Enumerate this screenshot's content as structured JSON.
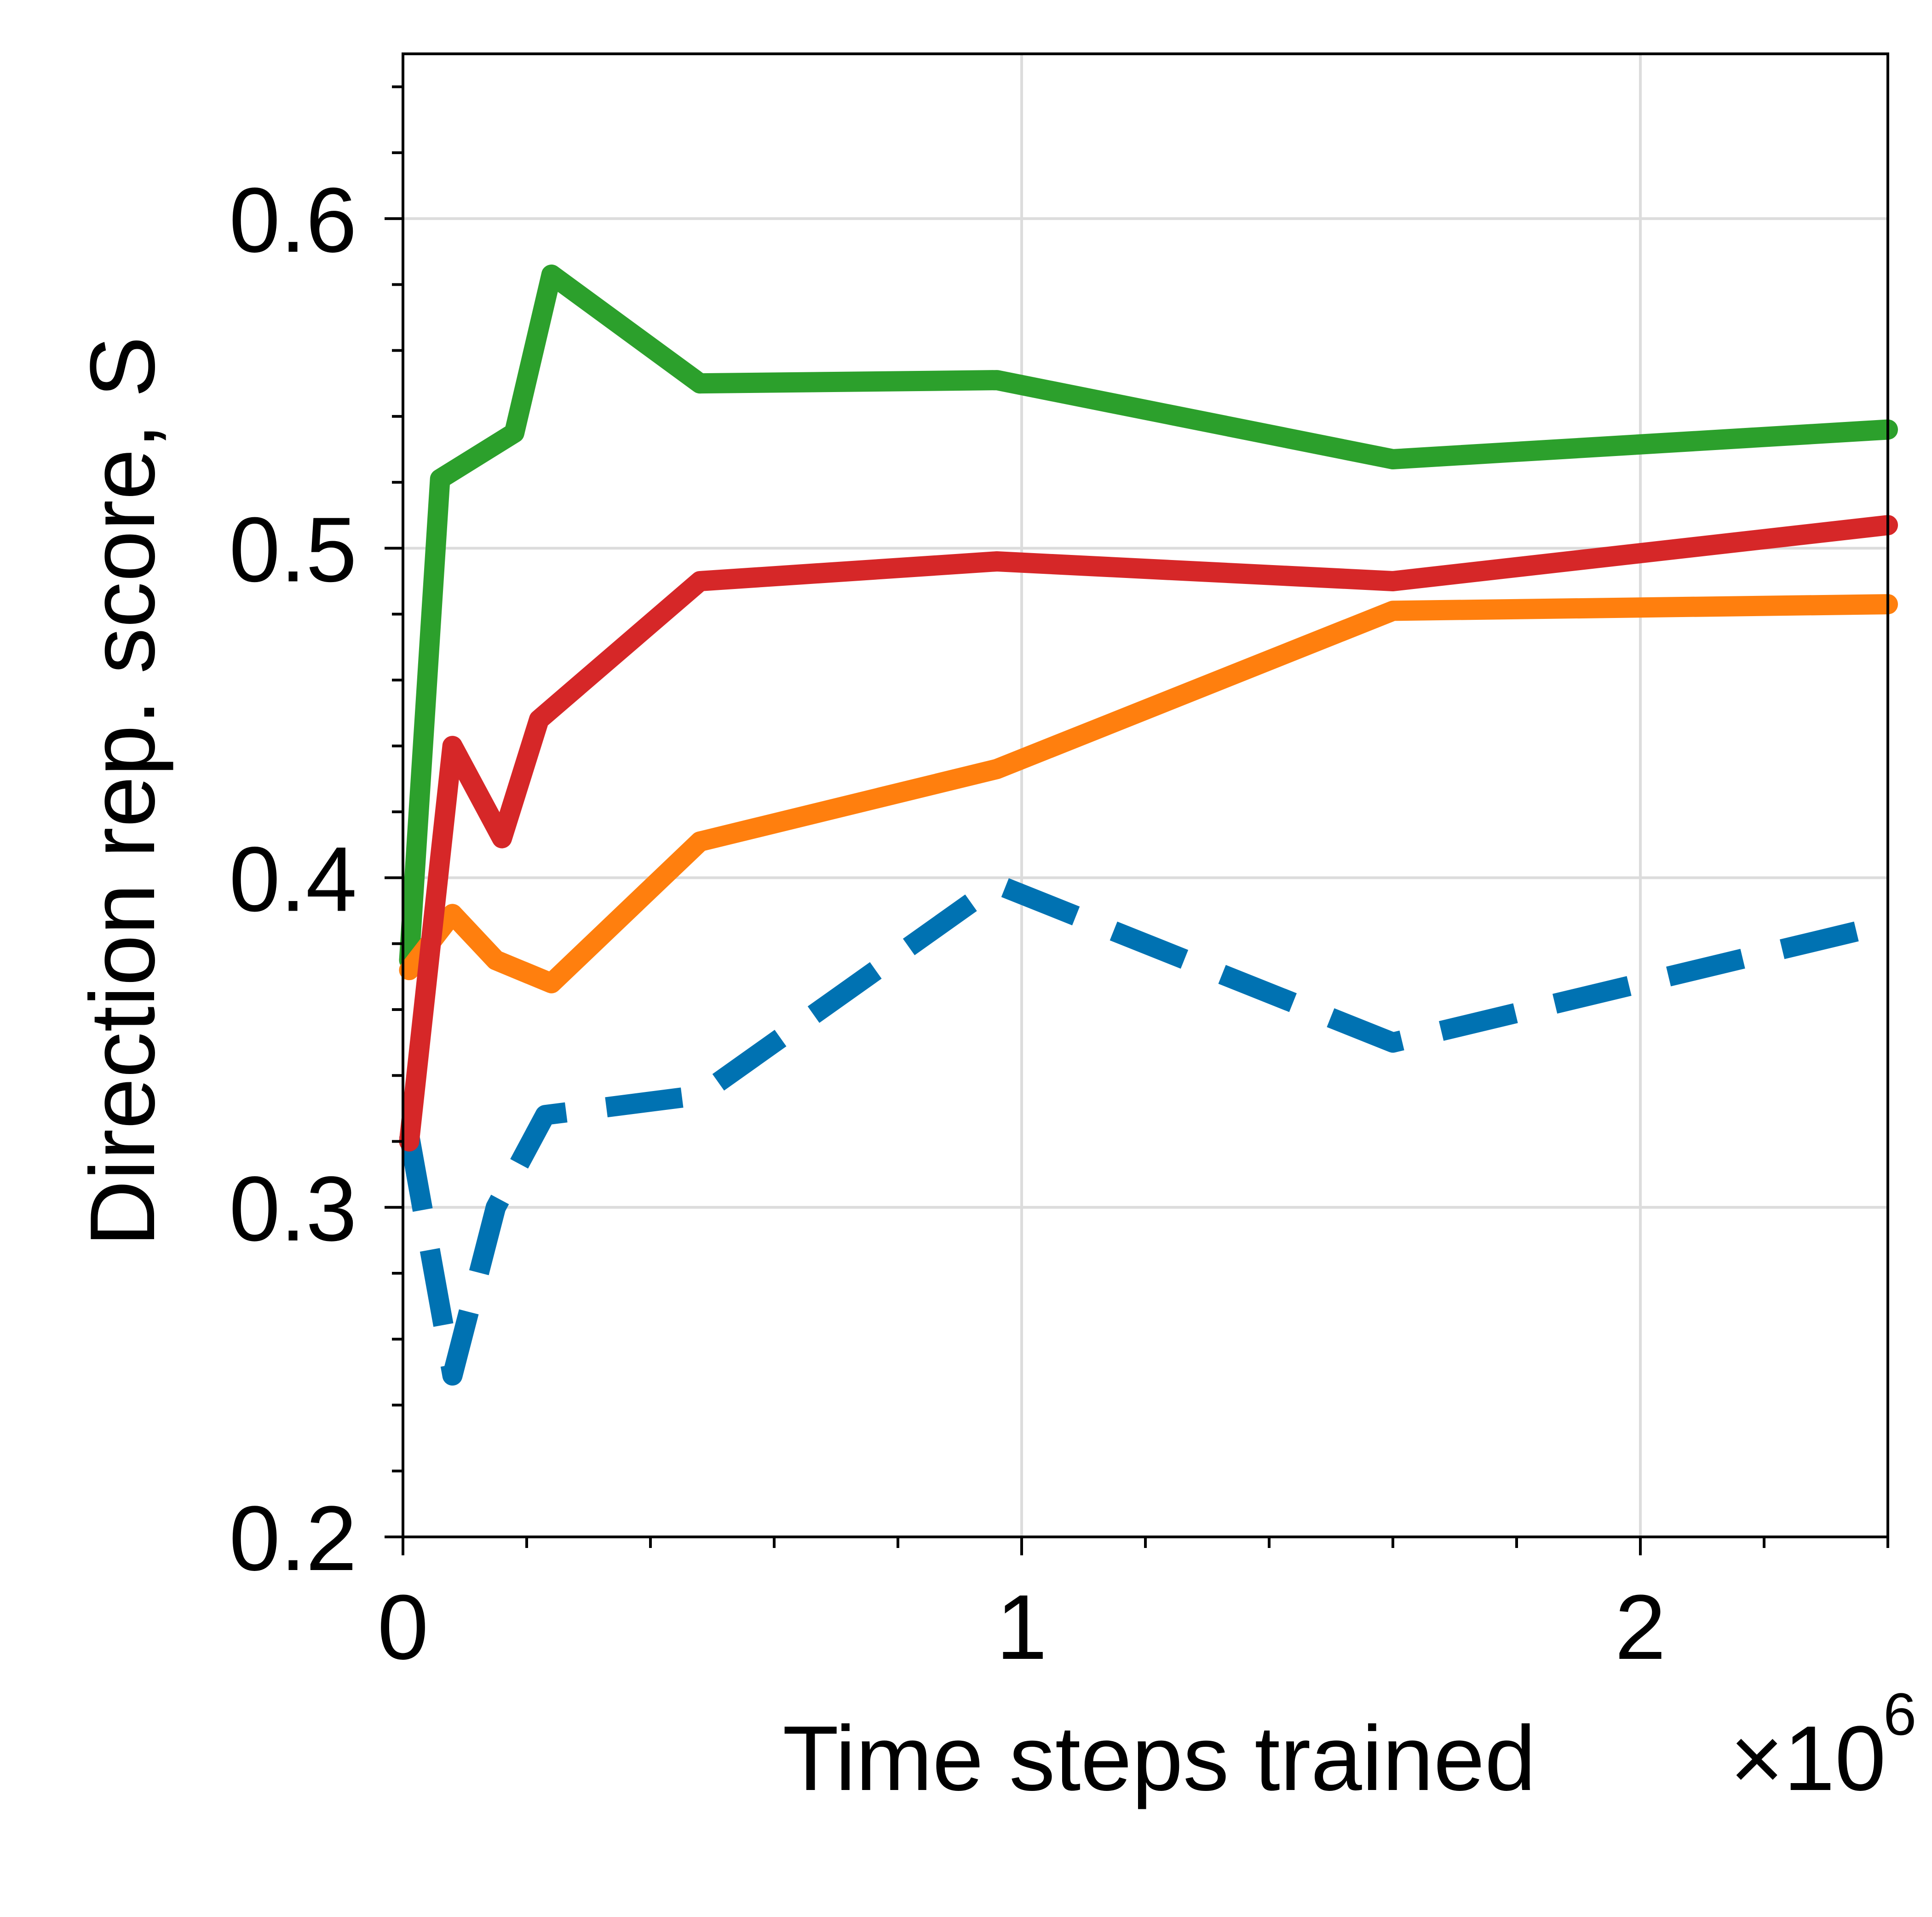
{
  "chart_data": {
    "type": "line",
    "title": "",
    "xlabel": "Time steps trained",
    "x_multiplier_label": "×10",
    "x_multiplier_exponent": "6",
    "ylabel": "Direction rep. score, S",
    "xlim": [
      0,
      2.4
    ],
    "ylim": [
      0.2,
      0.65
    ],
    "x_ticks": [
      0,
      1,
      2
    ],
    "x_tick_labels": [
      "0",
      "1",
      "2"
    ],
    "y_ticks": [
      0.2,
      0.3,
      0.4,
      0.5,
      0.6
    ],
    "y_tick_labels": [
      "0.2",
      "0.3",
      "0.4",
      "0.5",
      "0.6"
    ],
    "x_minor_step": 0.2,
    "y_minor_step": 0.02,
    "grid": true,
    "series": [
      {
        "color": "#0072b2",
        "style": "dashed",
        "x": [
          0.01,
          0.08,
          0.15,
          0.23,
          0.48,
          0.96,
          1.6,
          2.4
        ],
        "y": [
          0.322,
          0.249,
          0.3,
          0.328,
          0.334,
          0.398,
          0.35,
          0.386
        ]
      },
      {
        "color": "#2ca02c",
        "style": "solid",
        "x": [
          0.01,
          0.06,
          0.18,
          0.24,
          0.48,
          0.96,
          1.6,
          2.4
        ],
        "y": [
          0.375,
          0.521,
          0.535,
          0.583,
          0.55,
          0.551,
          0.527,
          0.536
        ]
      },
      {
        "color": "#ff7f0e",
        "style": "solid",
        "x": [
          0.01,
          0.08,
          0.15,
          0.24,
          0.48,
          0.96,
          1.6,
          2.4
        ],
        "y": [
          0.372,
          0.389,
          0.375,
          0.368,
          0.411,
          0.433,
          0.481,
          0.483
        ]
      },
      {
        "color": "#d62728",
        "style": "solid",
        "x": [
          0.01,
          0.08,
          0.16,
          0.22,
          0.48,
          0.96,
          1.6,
          2.4
        ],
        "y": [
          0.32,
          0.44,
          0.412,
          0.448,
          0.49,
          0.496,
          0.49,
          0.507
        ]
      }
    ]
  }
}
